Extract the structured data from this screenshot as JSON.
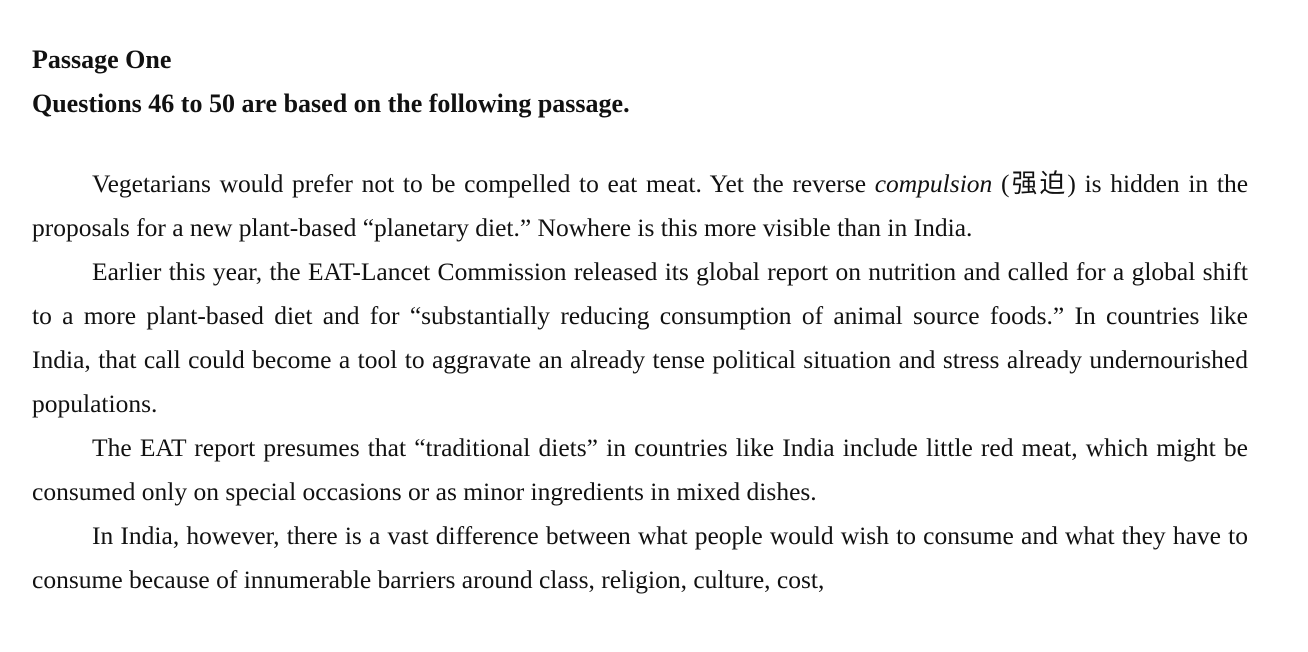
{
  "document": {
    "heading_passage": "Passage One",
    "heading_questions": "Questions 46 to 50 are based on the following passage.",
    "paragraphs": {
      "p1": {
        "before": "Vegetarians would prefer not to be compelled to eat meat. Yet the reverse ",
        "term": "compulsion",
        "gloss": " (强迫) ",
        "after": "is hidden in the proposals for a new plant-based “planetary diet.” Nowhere is this more visible than in India."
      },
      "p2": "Earlier this year, the EAT-Lancet Commission released its global report on nutrition and called for a global shift to a more plant-based diet and for “substantially reducing consumption of animal source foods.” In countries like India, that call could become a tool to aggravate an already tense political situation and stress already undernourished populations.",
      "p3": "The EAT report presumes that “traditional diets” in countries like India include little red meat, which might be consumed only on special occasions or as minor ingredients in mixed dishes.",
      "p4": "In India, however, there is a vast difference between what people would wish to consume and what they have to consume because of innumerable barriers around class, religion, culture, cost,"
    }
  }
}
